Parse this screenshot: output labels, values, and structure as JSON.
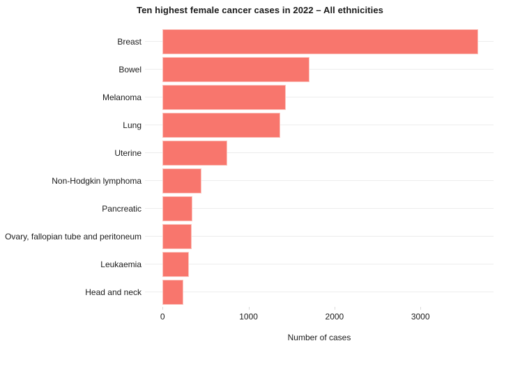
{
  "title": "Ten highest female cancer cases in 2022 – All ethnicities",
  "chart_data": {
    "type": "bar",
    "orientation": "horizontal",
    "title": "Ten highest female cancer cases in 2022 – All ethnicities",
    "categories": [
      "Breast",
      "Bowel",
      "Melanoma",
      "Lung",
      "Uterine",
      "Non-Hodgkin lymphoma",
      "Pancreatic",
      "Ovary, fallopian tube and peritoneum",
      "Leukaemia",
      "Head and neck"
    ],
    "values": [
      3670,
      1710,
      1430,
      1365,
      750,
      455,
      345,
      340,
      310,
      245
    ],
    "xlabel": "Number of cases",
    "ylabel": "",
    "xticks": [
      0,
      1000,
      2000,
      3000
    ],
    "xtick_labels": [
      "0",
      "1000",
      "2000",
      "3000"
    ],
    "xlim": [
      -205,
      3850
    ],
    "grid": "horizontal-category-lines-only",
    "legend": "none",
    "colors": {
      "bar": "#F8766D",
      "bar_border": "#FBC4BE",
      "gridline": "#ECECEC",
      "tick": "#D9D9D9",
      "text": "#1A1A1A",
      "background": "#FFFFFF"
    }
  }
}
